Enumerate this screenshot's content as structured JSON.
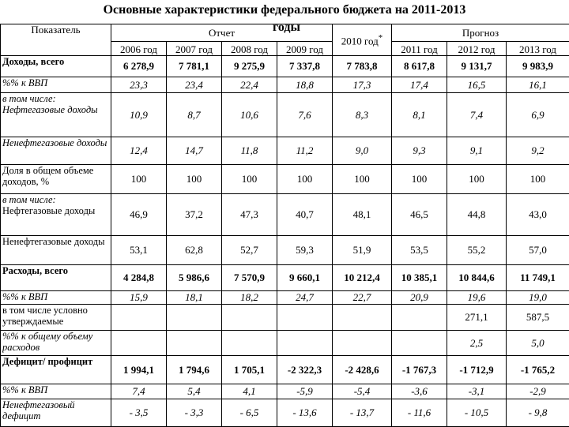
{
  "title": {
    "line1": "Основные характеристики федерального бюджета на 2011-2013",
    "line2": "годы"
  },
  "header": {
    "indicator": "Показатель",
    "report": "Отчет",
    "forecast": "Прогноз",
    "current_year": "2010 год",
    "current_mark": "*",
    "report_years": [
      "2006 год",
      "2007 год",
      "2008 год",
      "2009 год"
    ],
    "forecast_years": [
      "2011 год",
      "2012 год",
      "2013 год"
    ]
  },
  "table": {
    "rows": [
      {
        "label": "Доходы, всего",
        "style": "bold",
        "cells": [
          "6 278,9",
          "7 781,1",
          "9 275,9",
          "7 337,8",
          "7 783,8",
          "8 617,8",
          "9 131,7",
          "9 983,9"
        ]
      },
      {
        "label": "%% к ВВП",
        "style": "italic",
        "cells": [
          "23,3",
          "23,4",
          "22,4",
          "18,8",
          "17,3",
          "17,4",
          "16,5",
          "16,1"
        ]
      },
      {
        "note": "в том числе:",
        "label": "Нефтегазовые доходы",
        "style": "italic",
        "cells": [
          "10,9",
          "8,7",
          "10,6",
          "7,6",
          "8,3",
          "8,1",
          "7,4",
          "6,9"
        ]
      },
      {
        "label": "Ненефтегазовые доходы",
        "style": "italic",
        "cells": [
          "12,4",
          "14,7",
          "11,8",
          "11,2",
          "9,0",
          "9,3",
          "9,1",
          "9,2"
        ]
      },
      {
        "label": "Доля в общем объеме доходов, %",
        "style": "normal",
        "cells": [
          "100",
          "100",
          "100",
          "100",
          "100",
          "100",
          "100",
          "100"
        ]
      },
      {
        "note": "в том числе:",
        "label": "Нефтегазовые доходы",
        "style": "normal",
        "cells": [
          "46,9",
          "37,2",
          "47,3",
          "40,7",
          "48,1",
          "46,5",
          "44,8",
          "43,0"
        ]
      },
      {
        "label": "Ненефтегазовые доходы",
        "style": "normal",
        "cells": [
          "53,1",
          "62,8",
          "52,7",
          "59,3",
          "51,9",
          "53,5",
          "55,2",
          "57,0"
        ]
      },
      {
        "label": "Расходы, всего",
        "style": "bold",
        "cells": [
          "4 284,8",
          "5 986,6",
          "7 570,9",
          "9 660,1",
          "10 212,4",
          "10 385,1",
          "10 844,6",
          "11 749,1"
        ]
      },
      {
        "label": "%% к ВВП",
        "style": "italic",
        "cells": [
          "15,9",
          "18,1",
          "18,2",
          "24,7",
          "22,7",
          "20,9",
          "19,6",
          "19,0"
        ]
      },
      {
        "label": "в том числе условно утверждаемые",
        "style": "normal",
        "cells": [
          null,
          null,
          null,
          null,
          null,
          null,
          "271,1",
          "587,5"
        ]
      },
      {
        "label": "%% к общему объему расходов",
        "style": "italic",
        "cells": [
          null,
          null,
          null,
          null,
          null,
          null,
          "2,5",
          "5,0"
        ]
      },
      {
        "label": "Дефицит/ профицит",
        "style": "bold",
        "cells": [
          "1 994,1",
          "1 794,6",
          "1 705,1",
          "-2 322,3",
          "-2 428,6",
          "-1 767,3",
          "-1 712,9",
          "-1 765,2"
        ]
      },
      {
        "label": "%% к ВВП",
        "style": "italic",
        "cells": [
          "7,4",
          "5,4",
          "4,1",
          "-5,9",
          "-5,4",
          "-3,6",
          "-3,1",
          "-2,9"
        ]
      },
      {
        "label": "Ненефтегазовый дефицит",
        "style": "italic",
        "cells": [
          "- 3,5",
          "- 3,3",
          "- 6,5",
          "- 13,6",
          "- 13,7",
          "- 11,6",
          "- 10,5",
          "- 9,8"
        ]
      }
    ]
  }
}
